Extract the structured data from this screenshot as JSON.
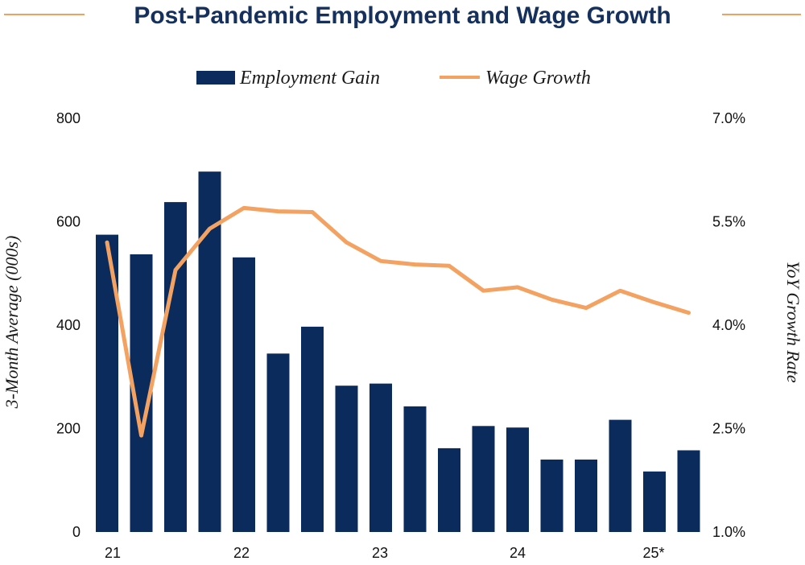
{
  "title": "Post-Pandemic Employment and Wage Growth",
  "colors": {
    "bar": "#0b2b5c",
    "line": "#f4a261",
    "title": "#16305e",
    "rule": "#f0a060"
  },
  "chart_data": {
    "type": "bar",
    "title": "Post-Pandemic Employment and Wage Growth",
    "legend_position": "top-center",
    "grid": false,
    "x_tick_labels": [
      "21",
      "22",
      "23",
      "24",
      "25*"
    ],
    "y_left": {
      "label": "3-Month Average (000s)",
      "range": [
        0,
        800
      ],
      "ticks": [
        "0",
        "200",
        "400",
        "600",
        "800"
      ]
    },
    "y_right": {
      "label": "YoY Growth Rate",
      "range": [
        1.0,
        7.0
      ],
      "ticks": [
        "1.0%",
        "2.5%",
        "4.0%",
        "5.5%",
        "7.0%"
      ]
    },
    "series": [
      {
        "name": "Employment Gain",
        "type": "bar",
        "axis": "left",
        "values": [
          575,
          537,
          638,
          697,
          531,
          345,
          397,
          283,
          287,
          243,
          162,
          205,
          202,
          140,
          140,
          217,
          117,
          158
        ]
      },
      {
        "name": "Wage Growth",
        "type": "line",
        "axis": "right",
        "values": [
          5.2,
          2.4,
          4.8,
          5.4,
          5.7,
          5.65,
          5.64,
          5.2,
          4.93,
          4.88,
          4.86,
          4.5,
          4.55,
          4.37,
          4.25,
          4.5,
          4.33,
          4.18
        ]
      }
    ]
  }
}
